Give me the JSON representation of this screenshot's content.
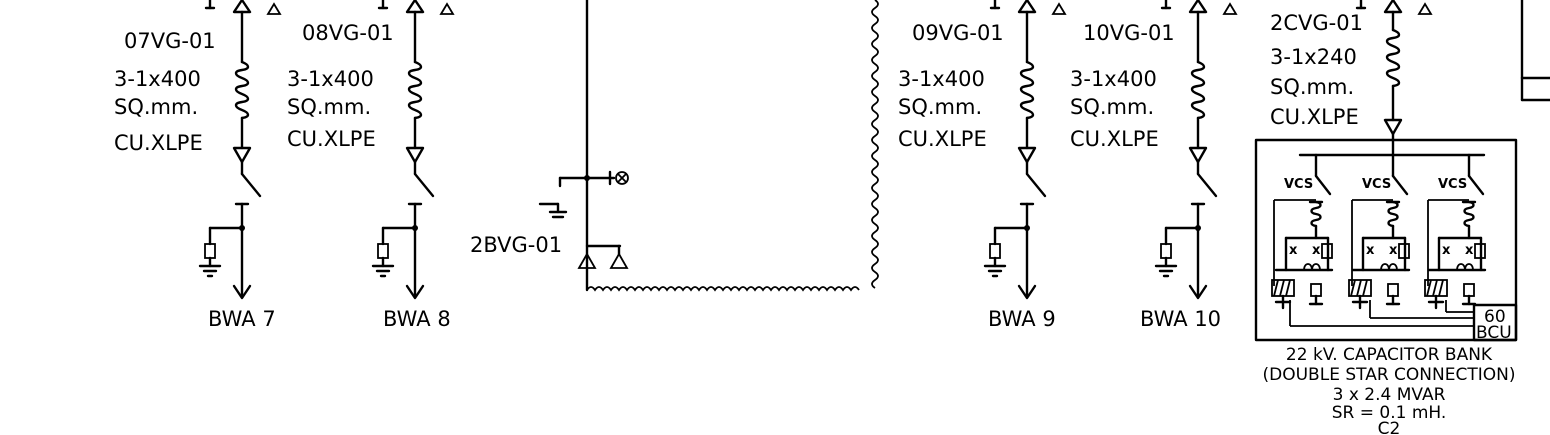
{
  "feeders": [
    {
      "tag": "07VG-01",
      "cable": [
        "3-1x400",
        "SQ.mm.",
        "CU.XLPE"
      ],
      "load": "BWA  7"
    },
    {
      "tag": "08VG-01",
      "cable": [
        "3-1x400",
        "SQ.mm.",
        "CU.XLPE"
      ],
      "load": "BWA  8"
    },
    {
      "tag": "09VG-01",
      "cable": [
        "3-1x400",
        "SQ.mm.",
        "CU.XLPE"
      ],
      "load": "BWA  9"
    },
    {
      "tag": "10VG-01",
      "cable": [
        "3-1x400",
        "SQ.mm.",
        "CU.XLPE"
      ],
      "load": "BWA  10"
    }
  ],
  "coupler": {
    "tag": "2BVG-01"
  },
  "capacitor": {
    "tag": "2CVG-01",
    "cable": [
      "3-1x240",
      "SQ.mm.",
      "CU.XLPE"
    ],
    "switch_label": "VCS",
    "relay": [
      "60",
      "BCU"
    ],
    "title": [
      "22  kV.  CAPACITOR  BANK",
      "(DOUBLE  STAR  CONNECTION)",
      "3  x  2.4  MVAR",
      "SR  =  0.1  mH.",
      "C2"
    ]
  },
  "colors": {
    "ink": "#000000",
    "paper": "#ffffff"
  }
}
